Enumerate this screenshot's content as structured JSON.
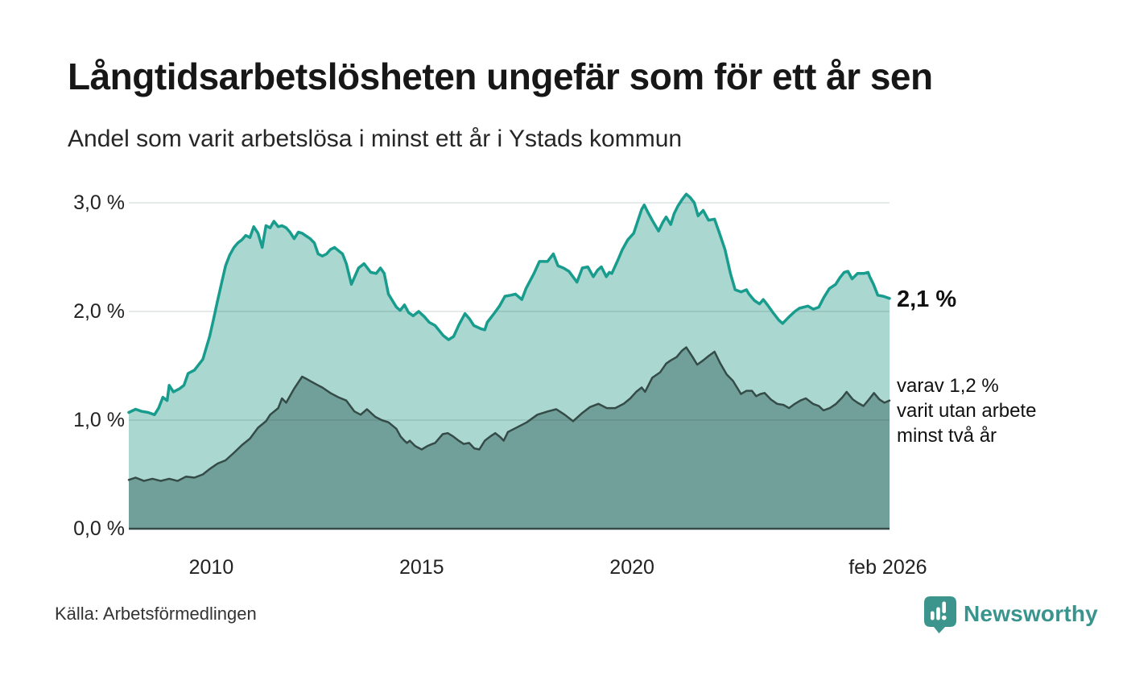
{
  "chart_data": {
    "type": "area",
    "title": "Långtidsarbetslösheten ungefär som för ett år sen",
    "subtitle": "Andel som varit arbetslösa i minst ett år i Ystads kommun",
    "source": "Källa: Arbetsförmedlingen",
    "brand": "Newsworthy",
    "legend_position": "end-of-line labels",
    "grid": true,
    "x_axis": {
      "range": [
        2008.04,
        2026.12
      ],
      "ticks": [
        {
          "value": 2010,
          "label": "2010"
        },
        {
          "value": 2015,
          "label": "2015"
        },
        {
          "value": 2020,
          "label": "2020"
        },
        {
          "value": 2026.08,
          "label": "feb 2026"
        }
      ]
    },
    "y_axis": {
      "unit": "%",
      "range": [
        0,
        3.25
      ],
      "ticks": [
        {
          "value": 0,
          "label": "0,0 %"
        },
        {
          "value": 1,
          "label": "1,0 %"
        },
        {
          "value": 2,
          "label": "2,0 %"
        },
        {
          "value": 3,
          "label": "3,0 %"
        }
      ]
    },
    "series": [
      {
        "id": "unemployed-at-least-one-year",
        "end_label": "2,1 %",
        "end_value": 2.1,
        "line_color": "#189c8d",
        "fill_color": "#aad8d1",
        "points": [
          [
            2008.04,
            1.07
          ],
          [
            2008.2,
            1.1
          ],
          [
            2008.35,
            1.08
          ],
          [
            2008.5,
            1.07
          ],
          [
            2008.65,
            1.05
          ],
          [
            2008.75,
            1.11
          ],
          [
            2008.85,
            1.21
          ],
          [
            2008.95,
            1.18
          ],
          [
            2009.0,
            1.32
          ],
          [
            2009.1,
            1.26
          ],
          [
            2009.25,
            1.29
          ],
          [
            2009.35,
            1.32
          ],
          [
            2009.45,
            1.43
          ],
          [
            2009.6,
            1.46
          ],
          [
            2009.8,
            1.56
          ],
          [
            2009.96,
            1.77
          ],
          [
            2010.06,
            1.94
          ],
          [
            2010.15,
            2.1
          ],
          [
            2010.25,
            2.27
          ],
          [
            2010.34,
            2.42
          ],
          [
            2010.44,
            2.52
          ],
          [
            2010.54,
            2.59
          ],
          [
            2010.63,
            2.63
          ],
          [
            2010.73,
            2.66
          ],
          [
            2010.82,
            2.7
          ],
          [
            2010.92,
            2.68
          ],
          [
            2011.01,
            2.78
          ],
          [
            2011.11,
            2.72
          ],
          [
            2011.21,
            2.59
          ],
          [
            2011.3,
            2.79
          ],
          [
            2011.4,
            2.77
          ],
          [
            2011.49,
            2.83
          ],
          [
            2011.59,
            2.78
          ],
          [
            2011.68,
            2.79
          ],
          [
            2011.78,
            2.77
          ],
          [
            2011.87,
            2.73
          ],
          [
            2011.97,
            2.67
          ],
          [
            2012.07,
            2.73
          ],
          [
            2012.16,
            2.72
          ],
          [
            2012.35,
            2.67
          ],
          [
            2012.45,
            2.63
          ],
          [
            2012.54,
            2.53
          ],
          [
            2012.64,
            2.51
          ],
          [
            2012.74,
            2.53
          ],
          [
            2012.83,
            2.57
          ],
          [
            2012.93,
            2.59
          ],
          [
            2013.02,
            2.56
          ],
          [
            2013.12,
            2.53
          ],
          [
            2013.21,
            2.44
          ],
          [
            2013.33,
            2.25
          ],
          [
            2013.5,
            2.4
          ],
          [
            2013.63,
            2.44
          ],
          [
            2013.79,
            2.36
          ],
          [
            2013.92,
            2.35
          ],
          [
            2014.02,
            2.4
          ],
          [
            2014.11,
            2.35
          ],
          [
            2014.21,
            2.16
          ],
          [
            2014.4,
            2.04
          ],
          [
            2014.49,
            2.01
          ],
          [
            2014.59,
            2.06
          ],
          [
            2014.69,
            1.99
          ],
          [
            2014.8,
            1.96
          ],
          [
            2014.93,
            2.0
          ],
          [
            2015.07,
            1.95
          ],
          [
            2015.18,
            1.9
          ],
          [
            2015.32,
            1.87
          ],
          [
            2015.51,
            1.78
          ],
          [
            2015.64,
            1.74
          ],
          [
            2015.76,
            1.77
          ],
          [
            2015.89,
            1.88
          ],
          [
            2016.03,
            1.98
          ],
          [
            2016.14,
            1.93
          ],
          [
            2016.24,
            1.87
          ],
          [
            2016.41,
            1.84
          ],
          [
            2016.5,
            1.83
          ],
          [
            2016.56,
            1.9
          ],
          [
            2016.7,
            1.97
          ],
          [
            2016.85,
            2.05
          ],
          [
            2016.98,
            2.14
          ],
          [
            2017.12,
            2.15
          ],
          [
            2017.23,
            2.16
          ],
          [
            2017.38,
            2.11
          ],
          [
            2017.48,
            2.21
          ],
          [
            2017.67,
            2.35
          ],
          [
            2017.8,
            2.46
          ],
          [
            2017.99,
            2.46
          ],
          [
            2018.13,
            2.53
          ],
          [
            2018.24,
            2.42
          ],
          [
            2018.37,
            2.4
          ],
          [
            2018.5,
            2.37
          ],
          [
            2018.69,
            2.27
          ],
          [
            2018.82,
            2.4
          ],
          [
            2018.95,
            2.41
          ],
          [
            2019.08,
            2.32
          ],
          [
            2019.18,
            2.38
          ],
          [
            2019.27,
            2.41
          ],
          [
            2019.39,
            2.32
          ],
          [
            2019.46,
            2.36
          ],
          [
            2019.52,
            2.35
          ],
          [
            2019.66,
            2.47
          ],
          [
            2019.77,
            2.57
          ],
          [
            2019.9,
            2.66
          ],
          [
            2020.04,
            2.72
          ],
          [
            2020.23,
            2.94
          ],
          [
            2020.29,
            2.98
          ],
          [
            2020.38,
            2.91
          ],
          [
            2020.48,
            2.84
          ],
          [
            2020.63,
            2.74
          ],
          [
            2020.73,
            2.82
          ],
          [
            2020.81,
            2.87
          ],
          [
            2020.92,
            2.8
          ],
          [
            2021.0,
            2.9
          ],
          [
            2021.09,
            2.97
          ],
          [
            2021.19,
            3.03
          ],
          [
            2021.29,
            3.08
          ],
          [
            2021.38,
            3.05
          ],
          [
            2021.48,
            3.0
          ],
          [
            2021.57,
            2.88
          ],
          [
            2021.69,
            2.93
          ],
          [
            2021.82,
            2.84
          ],
          [
            2021.96,
            2.85
          ],
          [
            2022.07,
            2.73
          ],
          [
            2022.21,
            2.57
          ],
          [
            2022.34,
            2.35
          ],
          [
            2022.45,
            2.2
          ],
          [
            2022.59,
            2.18
          ],
          [
            2022.72,
            2.2
          ],
          [
            2022.78,
            2.16
          ],
          [
            2022.91,
            2.1
          ],
          [
            2023.03,
            2.07
          ],
          [
            2023.12,
            2.11
          ],
          [
            2023.22,
            2.06
          ],
          [
            2023.35,
            1.99
          ],
          [
            2023.49,
            1.92
          ],
          [
            2023.58,
            1.89
          ],
          [
            2023.73,
            1.95
          ],
          [
            2023.87,
            2.0
          ],
          [
            2023.98,
            2.03
          ],
          [
            2024.18,
            2.05
          ],
          [
            2024.31,
            2.02
          ],
          [
            2024.44,
            2.04
          ],
          [
            2024.56,
            2.13
          ],
          [
            2024.69,
            2.21
          ],
          [
            2024.84,
            2.25
          ],
          [
            2024.94,
            2.31
          ],
          [
            2025.04,
            2.36
          ],
          [
            2025.13,
            2.37
          ],
          [
            2025.23,
            2.3
          ],
          [
            2025.36,
            2.35
          ],
          [
            2025.51,
            2.35
          ],
          [
            2025.61,
            2.36
          ],
          [
            2025.65,
            2.32
          ],
          [
            2025.74,
            2.25
          ],
          [
            2025.84,
            2.15
          ],
          [
            2025.97,
            2.14
          ],
          [
            2026.12,
            2.12
          ]
        ]
      },
      {
        "id": "unemployed-at-least-two-years",
        "end_label": "varav 1,2 %\nvarit utan arbete\nminst två år",
        "end_value": 1.2,
        "line_color": "#354b47",
        "fill_color": "#71a09a",
        "points": [
          [
            2008.04,
            0.45
          ],
          [
            2008.2,
            0.47
          ],
          [
            2008.4,
            0.44
          ],
          [
            2008.6,
            0.46
          ],
          [
            2008.8,
            0.44
          ],
          [
            2009.0,
            0.46
          ],
          [
            2009.2,
            0.44
          ],
          [
            2009.4,
            0.48
          ],
          [
            2009.6,
            0.47
          ],
          [
            2009.8,
            0.5
          ],
          [
            2009.96,
            0.55
          ],
          [
            2010.15,
            0.6
          ],
          [
            2010.34,
            0.63
          ],
          [
            2010.54,
            0.7
          ],
          [
            2010.73,
            0.77
          ],
          [
            2010.92,
            0.83
          ],
          [
            2011.11,
            0.93
          ],
          [
            2011.3,
            0.99
          ],
          [
            2011.4,
            1.05
          ],
          [
            2011.59,
            1.11
          ],
          [
            2011.68,
            1.2
          ],
          [
            2011.78,
            1.16
          ],
          [
            2011.97,
            1.29
          ],
          [
            2012.16,
            1.4
          ],
          [
            2012.26,
            1.38
          ],
          [
            2012.35,
            1.36
          ],
          [
            2012.54,
            1.32
          ],
          [
            2012.64,
            1.3
          ],
          [
            2012.83,
            1.25
          ],
          [
            2013.02,
            1.21
          ],
          [
            2013.21,
            1.18
          ],
          [
            2013.4,
            1.08
          ],
          [
            2013.55,
            1.05
          ],
          [
            2013.7,
            1.1
          ],
          [
            2013.9,
            1.03
          ],
          [
            2014.05,
            1.0
          ],
          [
            2014.21,
            0.98
          ],
          [
            2014.4,
            0.92
          ],
          [
            2014.5,
            0.85
          ],
          [
            2014.59,
            0.81
          ],
          [
            2014.65,
            0.79
          ],
          [
            2014.72,
            0.81
          ],
          [
            2014.85,
            0.76
          ],
          [
            2015.0,
            0.73
          ],
          [
            2015.13,
            0.76
          ],
          [
            2015.25,
            0.78
          ],
          [
            2015.32,
            0.79
          ],
          [
            2015.5,
            0.87
          ],
          [
            2015.62,
            0.88
          ],
          [
            2015.75,
            0.85
          ],
          [
            2015.88,
            0.81
          ],
          [
            2016.0,
            0.78
          ],
          [
            2016.13,
            0.79
          ],
          [
            2016.25,
            0.74
          ],
          [
            2016.37,
            0.73
          ],
          [
            2016.5,
            0.81
          ],
          [
            2016.63,
            0.85
          ],
          [
            2016.75,
            0.88
          ],
          [
            2016.88,
            0.84
          ],
          [
            2016.95,
            0.81
          ],
          [
            2017.05,
            0.89
          ],
          [
            2017.2,
            0.92
          ],
          [
            2017.5,
            0.98
          ],
          [
            2017.75,
            1.05
          ],
          [
            2018.0,
            1.08
          ],
          [
            2018.2,
            1.1
          ],
          [
            2018.4,
            1.05
          ],
          [
            2018.6,
            0.99
          ],
          [
            2018.8,
            1.06
          ],
          [
            2019.0,
            1.12
          ],
          [
            2019.2,
            1.15
          ],
          [
            2019.4,
            1.11
          ],
          [
            2019.6,
            1.11
          ],
          [
            2019.8,
            1.15
          ],
          [
            2019.96,
            1.2
          ],
          [
            2020.1,
            1.26
          ],
          [
            2020.23,
            1.3
          ],
          [
            2020.31,
            1.26
          ],
          [
            2020.48,
            1.39
          ],
          [
            2020.67,
            1.44
          ],
          [
            2020.81,
            1.52
          ],
          [
            2020.92,
            1.55
          ],
          [
            2021.06,
            1.58
          ],
          [
            2021.19,
            1.64
          ],
          [
            2021.29,
            1.67
          ],
          [
            2021.44,
            1.58
          ],
          [
            2021.55,
            1.51
          ],
          [
            2021.69,
            1.55
          ],
          [
            2021.82,
            1.59
          ],
          [
            2021.96,
            1.63
          ],
          [
            2022.1,
            1.52
          ],
          [
            2022.25,
            1.42
          ],
          [
            2022.4,
            1.36
          ],
          [
            2022.59,
            1.24
          ],
          [
            2022.72,
            1.27
          ],
          [
            2022.85,
            1.27
          ],
          [
            2022.95,
            1.22
          ],
          [
            2023.05,
            1.24
          ],
          [
            2023.15,
            1.25
          ],
          [
            2023.3,
            1.19
          ],
          [
            2023.45,
            1.15
          ],
          [
            2023.6,
            1.14
          ],
          [
            2023.73,
            1.11
          ],
          [
            2023.87,
            1.15
          ],
          [
            2024.0,
            1.18
          ],
          [
            2024.13,
            1.2
          ],
          [
            2024.3,
            1.15
          ],
          [
            2024.44,
            1.13
          ],
          [
            2024.55,
            1.09
          ],
          [
            2024.7,
            1.11
          ],
          [
            2024.85,
            1.15
          ],
          [
            2025.0,
            1.21
          ],
          [
            2025.1,
            1.26
          ],
          [
            2025.25,
            1.19
          ],
          [
            2025.36,
            1.16
          ],
          [
            2025.5,
            1.13
          ],
          [
            2025.63,
            1.19
          ],
          [
            2025.75,
            1.25
          ],
          [
            2025.88,
            1.19
          ],
          [
            2026.0,
            1.16
          ],
          [
            2026.12,
            1.18
          ]
        ]
      }
    ],
    "colors": {
      "accent_teal": "#189c8d",
      "dark_slate": "#354b47",
      "brand_teal": "#38948c",
      "gridline": "#dfe2e2"
    }
  }
}
